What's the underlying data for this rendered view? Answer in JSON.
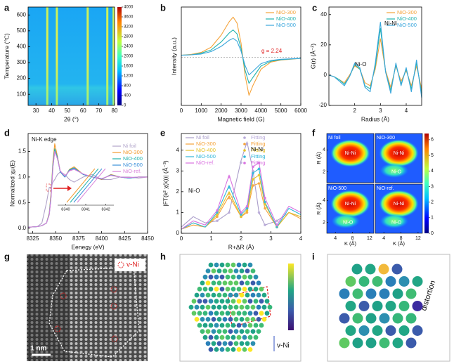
{
  "panel_labels": [
    "a",
    "b",
    "c",
    "d",
    "e",
    "f",
    "g",
    "h",
    "i"
  ],
  "chart_data": [
    {
      "type": "heatmap",
      "xlabel": "2θ (°)",
      "ylabel": "Temperature (℃)",
      "xlim": [
        25,
        80
      ],
      "xticks": [
        30,
        40,
        50,
        60,
        70,
        80
      ],
      "ylim": [
        30,
        650
      ],
      "yticks": [
        100,
        200,
        300,
        400,
        500,
        600
      ],
      "clim": [
        0,
        4000
      ],
      "cticks": [
        0,
        400,
        800,
        1200,
        1600,
        2000,
        2400,
        2800,
        3200,
        3600,
        4000
      ],
      "x": [
        37.2,
        43.3,
        62.9,
        75.4,
        79.4
      ]
    },
    {
      "type": "line",
      "xlabel": "Magnetic field (G)",
      "ylabel": "Intensity (a.u.)",
      "xlim": [
        0,
        6000
      ],
      "xticks": [
        0,
        1000,
        2000,
        3000,
        4000,
        5000,
        6000
      ],
      "ylim": [
        -1.2,
        1.25
      ],
      "legend": "upper right",
      "annotations": [
        "g = 2.24"
      ],
      "x": [
        0,
        500,
        1000,
        1500,
        2000,
        2400,
        2600,
        2800,
        3000,
        3200,
        3400,
        3600,
        4000,
        4500,
        5000,
        6000
      ],
      "series": [
        {
          "name": "NiO-300",
          "color": "#f5a33a",
          "values": [
            0.05,
            0.07,
            0.12,
            0.25,
            0.55,
            0.88,
            1.0,
            0.85,
            0.35,
            -0.45,
            -0.95,
            -0.7,
            -0.3,
            -0.12,
            -0.07,
            -0.03
          ]
        },
        {
          "name": "NiO-400",
          "color": "#22b3ae",
          "values": [
            0.05,
            0.06,
            0.1,
            0.18,
            0.38,
            0.6,
            0.68,
            0.58,
            0.22,
            -0.32,
            -0.65,
            -0.5,
            -0.22,
            -0.1,
            -0.06,
            -0.03
          ]
        },
        {
          "name": "NiO-500",
          "color": "#3aa6dc",
          "values": [
            0.05,
            0.06,
            0.08,
            0.14,
            0.27,
            0.42,
            0.47,
            0.4,
            0.15,
            -0.2,
            -0.44,
            -0.35,
            -0.16,
            -0.08,
            -0.05,
            -0.03
          ]
        }
      ]
    },
    {
      "type": "line",
      "xlabel": "Radius (Å)",
      "ylabel": "G(r) (Å⁻²)",
      "xlim": [
        1,
        4.6
      ],
      "xticks": [
        2,
        3,
        4
      ],
      "ylim": [
        -20,
        45
      ],
      "yticks": [
        -20,
        0,
        20,
        40
      ],
      "legend": "upper right",
      "annotations": [
        "Ni-O",
        "Ni-Ni"
      ],
      "x": [
        1.0,
        1.2,
        1.4,
        1.6,
        1.8,
        2.0,
        2.2,
        2.4,
        2.6,
        2.8,
        3.0,
        3.2,
        3.4,
        3.6,
        3.8,
        4.0,
        4.2,
        4.4,
        4.6
      ],
      "series": [
        {
          "name": "NiO-300",
          "color": "#f5a33a",
          "values": [
            0,
            -1,
            -3,
            -5,
            0,
            6,
            4,
            -5,
            -7,
            4,
            24,
            3,
            -8,
            6,
            -4,
            3,
            -7,
            6,
            -9
          ]
        },
        {
          "name": "NiO-400",
          "color": "#22b3ae",
          "values": [
            0,
            -1,
            -3,
            -6,
            -1,
            7,
            4,
            -7,
            -9,
            6,
            31,
            2,
            -10,
            7,
            -6,
            4,
            -9,
            8,
            -12
          ]
        },
        {
          "name": "NiO-500",
          "color": "#3aa6dc",
          "values": [
            0,
            -1,
            -4,
            -7,
            -1,
            8,
            5,
            -8,
            -11,
            8,
            35,
            2,
            -12,
            8,
            -7,
            5,
            -11,
            10,
            -15
          ]
        }
      ]
    },
    {
      "type": "line",
      "xlabel": "Eenegy (eV)",
      "ylabel": "Normalized χμ(E)",
      "xlim": [
        8320,
        8450
      ],
      "xticks": [
        8325,
        8350,
        8375,
        8400,
        8425,
        8450
      ],
      "ylim": [
        -0.1,
        1.85
      ],
      "yticks": [
        {
          "value": 0,
          "label": "0.0"
        },
        {
          "value": 0.5,
          "label": "0.5"
        },
        {
          "value": 1,
          "label": "1.0"
        },
        {
          "value": 1.5,
          "label": "1.5"
        }
      ],
      "legend": "center right",
      "annotations": [
        "Ni-K edge"
      ],
      "inset_xticks": [
        8340,
        8341,
        8342
      ],
      "inset_xlim": [
        8339.6,
        8342.4
      ],
      "x": [
        8320,
        8330,
        8335,
        8340,
        8343,
        8345,
        8347,
        8349,
        8352,
        8355,
        8360,
        8365,
        8370,
        8380,
        8390,
        8400,
        8410,
        8420,
        8430,
        8440,
        8450
      ],
      "series": [
        {
          "name": "Ni foil",
          "color": "#b0a3c9",
          "values": [
            0.02,
            0.03,
            0.1,
            0.5,
            0.8,
            0.8,
            0.9,
            0.95,
            1.05,
            1.1,
            1.05,
            0.95,
            0.9,
            1.0,
            1.05,
            0.95,
            0.95,
            1.0,
            1.0,
            0.98,
            1.0
          ]
        },
        {
          "name": "NiO-300",
          "color": "#f29a2e",
          "values": [
            0.02,
            0.03,
            0.05,
            0.1,
            0.3,
            0.7,
            1.3,
            1.65,
            1.4,
            1.1,
            1.0,
            1.15,
            1.2,
            1.05,
            1.0,
            0.95,
            1.05,
            1.0,
            0.98,
            1.0,
            1.0
          ]
        },
        {
          "name": "NiO-400",
          "color": "#20b2aa",
          "values": [
            0.02,
            0.03,
            0.05,
            0.1,
            0.28,
            0.65,
            1.25,
            1.55,
            1.38,
            1.1,
            1.0,
            1.14,
            1.18,
            1.05,
            1.0,
            0.96,
            1.04,
            1.0,
            0.98,
            1.0,
            1.0
          ]
        },
        {
          "name": "NiO-500",
          "color": "#3a8fd9",
          "values": [
            0.02,
            0.03,
            0.05,
            0.1,
            0.27,
            0.62,
            1.2,
            1.5,
            1.36,
            1.1,
            1.0,
            1.13,
            1.17,
            1.05,
            1.0,
            0.96,
            1.04,
            1.0,
            0.98,
            1.0,
            1.0
          ]
        },
        {
          "name": "NiO-ref.",
          "color": "#d982d9",
          "values": [
            0.02,
            0.03,
            0.05,
            0.1,
            0.26,
            0.6,
            1.18,
            1.5,
            1.35,
            1.12,
            1.02,
            1.12,
            1.15,
            1.06,
            1.0,
            0.97,
            1.03,
            1.0,
            0.99,
            1.0,
            1.0
          ]
        }
      ]
    },
    {
      "type": "line",
      "xlabel": "R+ΔR (Å)",
      "ylabel": "|FT(k² χ(k))| (Å⁻³)",
      "xlim": [
        0,
        4
      ],
      "xticks": [
        0,
        1,
        2,
        3,
        4
      ],
      "ylim": [
        0,
        4.8
      ],
      "yticks": [
        0,
        1,
        2,
        3,
        4
      ],
      "legend": "upper left",
      "annotations": [
        "Ni-O",
        "Ni-Ni"
      ],
      "x": [
        0,
        0.4,
        0.8,
        1.2,
        1.6,
        2.0,
        2.2,
        2.4,
        2.6,
        2.8,
        3.2,
        3.6,
        4.0
      ],
      "series": [
        {
          "name": "Ni foil",
          "color": "#a99cc9",
          "values": [
            0.3,
            0.8,
            0.5,
            0.6,
            1.0,
            3.5,
            4.4,
            3.0,
            1.0,
            0.4,
            0.6,
            1.0,
            0.8
          ]
        },
        {
          "name": "NiO-300",
          "color": "#f5a33a",
          "values": [
            0.2,
            0.4,
            0.3,
            0.8,
            1.8,
            0.8,
            1.0,
            2.3,
            2.4,
            1.2,
            0.3,
            1.0,
            0.7
          ]
        },
        {
          "name": "NiO-400",
          "color": "#e6c229",
          "values": [
            0.2,
            0.5,
            0.3,
            0.9,
            2.0,
            0.8,
            1.1,
            2.6,
            2.8,
            1.4,
            0.3,
            1.0,
            0.8
          ]
        },
        {
          "name": "NiO-500",
          "color": "#2fb6d9",
          "values": [
            0.2,
            0.5,
            0.3,
            1.0,
            2.3,
            0.9,
            1.2,
            2.9,
            3.1,
            1.5,
            0.3,
            1.2,
            0.9
          ]
        },
        {
          "name": "NiO-ref.",
          "color": "#d972e0",
          "values": [
            0.2,
            0.6,
            0.4,
            1.1,
            2.8,
            1.0,
            1.3,
            3.2,
            3.4,
            1.7,
            0.4,
            1.3,
            1.0
          ]
        },
        {
          "name": "Fitting",
          "color": "#b7a8d8",
          "marker": "circle",
          "values": [
            null,
            null,
            null,
            0.6,
            1.0,
            3.4,
            4.3,
            3.0,
            1.0,
            0.4,
            0.6,
            null,
            null
          ]
        },
        {
          "name": "Fitting",
          "color": "#f5a33a",
          "marker": "circle",
          "values": [
            null,
            null,
            null,
            0.8,
            1.7,
            0.8,
            1.0,
            2.3,
            2.4,
            1.2,
            0.3,
            null,
            null
          ]
        },
        {
          "name": "Fitting",
          "color": "#e6c229",
          "marker": "circle",
          "values": [
            null,
            null,
            null,
            0.9,
            1.9,
            0.8,
            1.1,
            2.6,
            2.8,
            1.4,
            0.3,
            null,
            null
          ]
        },
        {
          "name": "Fitting",
          "color": "#2fb6d9",
          "marker": "circle",
          "values": [
            null,
            null,
            null,
            1.0,
            2.2,
            0.9,
            1.2,
            2.9,
            3.1,
            1.5,
            0.3,
            null,
            null
          ]
        },
        {
          "name": "Fitting",
          "color": "#d972e0",
          "marker": "circle",
          "values": [
            null,
            null,
            null,
            1.1,
            2.7,
            1.0,
            1.3,
            3.2,
            3.4,
            1.7,
            0.4,
            null,
            null
          ]
        }
      ]
    },
    {
      "type": "heatmap-grid",
      "xlabel": "K (Å)",
      "ylabel": "R (Å)",
      "xlim": [
        2,
        13
      ],
      "xticks": [
        4,
        8,
        12
      ],
      "ylim": [
        1,
        5.5
      ],
      "yticks": [
        2,
        4
      ],
      "clim": [
        0,
        6.4
      ],
      "cticks": [
        0,
        1,
        2,
        3,
        4,
        5,
        6
      ],
      "subplots": [
        {
          "title": "Ni foil",
          "labels": [
            "Ni-Ni"
          ]
        },
        {
          "title": "NiO-300",
          "labels": [
            "Ni-Ni",
            "Ni-O"
          ]
        },
        {
          "title": "NiO-500",
          "labels": [
            "Ni-Ni",
            "Ni-O"
          ]
        },
        {
          "title": "NiO-ref.",
          "labels": [
            "Ni-Ni",
            "Ni-O"
          ]
        }
      ]
    }
  ],
  "images": {
    "g": {
      "legend": "v-Ni",
      "scale_bar": "1 nm"
    },
    "h": {
      "legend": "v-Ni"
    },
    "i": {
      "annotation": "distortion"
    }
  }
}
